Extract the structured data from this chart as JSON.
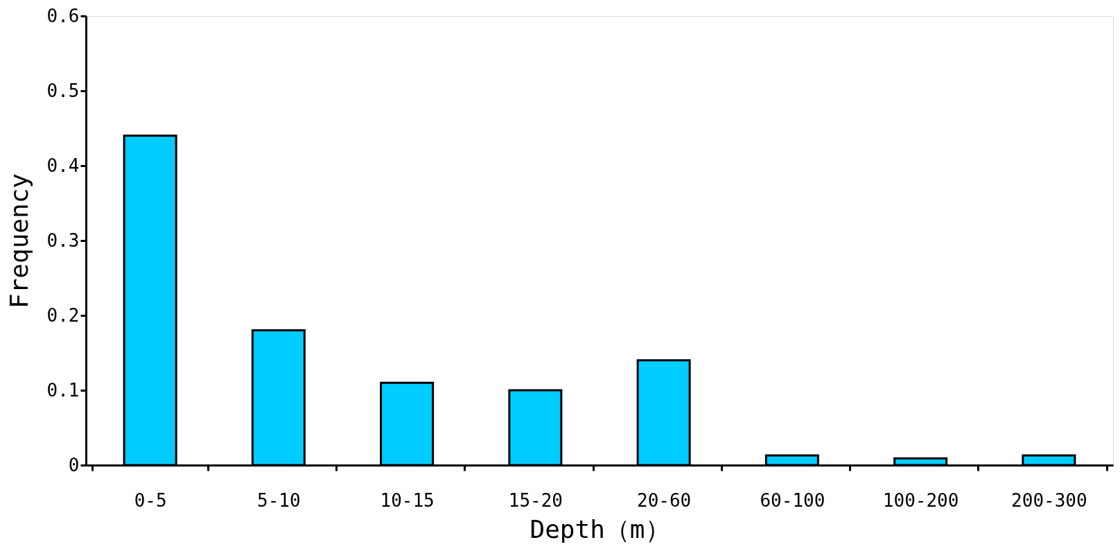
{
  "chart_data": {
    "type": "bar",
    "xlabel": "Depth（m）",
    "ylabel": "Frequency",
    "categories": [
      "0-5",
      "5-10",
      "10-15",
      "15-20",
      "20-60",
      "60-100",
      "100-200",
      "200-300"
    ],
    "values": [
      0.44,
      0.18,
      0.11,
      0.1,
      0.14,
      0.013,
      0.009,
      0.013
    ],
    "color": "#00ccff",
    "ylim": [
      0,
      0.6
    ],
    "yticks": [
      0,
      {
        "value": 0.1,
        "label": "0.1"
      },
      {
        "value": 0.2,
        "label": "0.2"
      },
      {
        "value": 0.3,
        "label": "0.3"
      },
      {
        "value": 0.4,
        "label": "0.4"
      },
      {
        "value": 0.5,
        "label": "0.5"
      },
      {
        "value": 0.6,
        "label": "0.6"
      }
    ],
    "grid": false
  }
}
